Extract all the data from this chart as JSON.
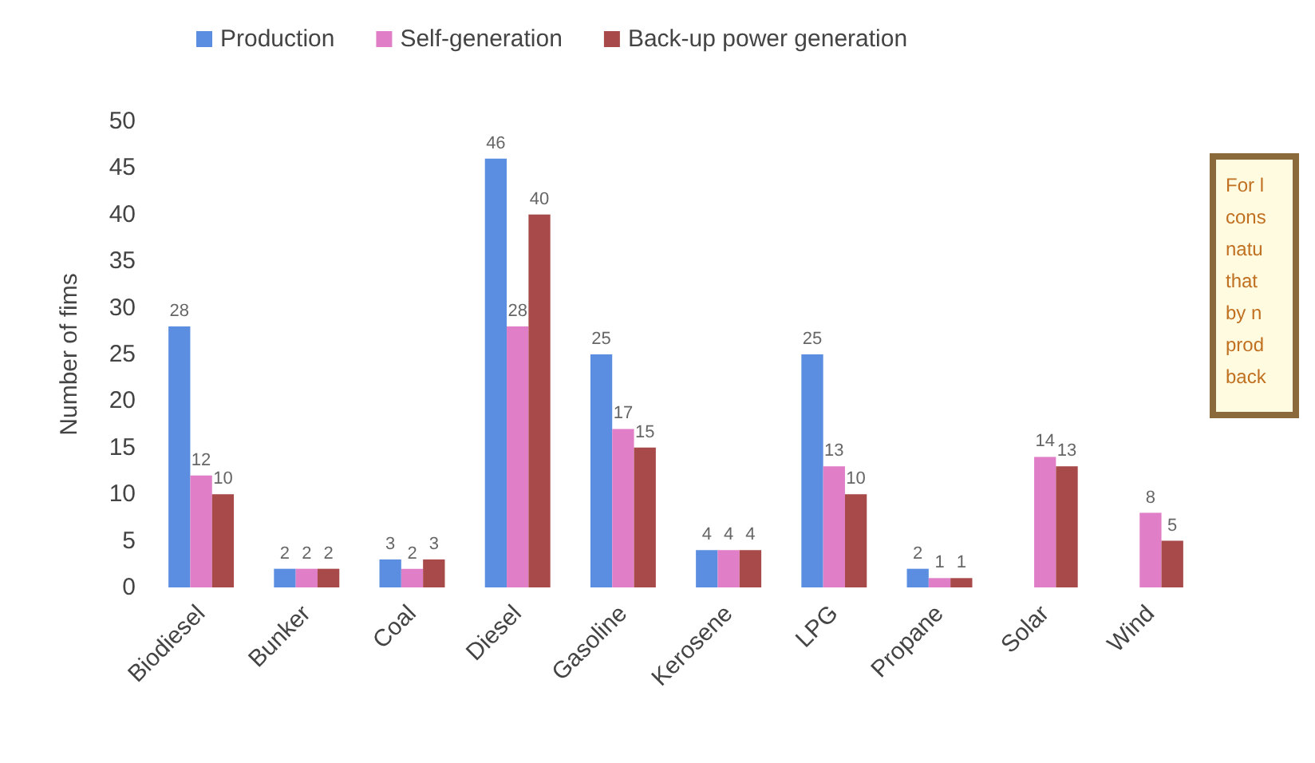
{
  "chart_data": {
    "type": "bar",
    "ylabel": "Number of fims",
    "categories": [
      "Biodiesel",
      "Bunker",
      "Coal",
      "Diesel",
      "Gasoline",
      "Kerosene",
      "LPG",
      "Propane",
      "Solar",
      "Wind"
    ],
    "series": [
      {
        "name": "Production",
        "color": "#5b8ee0",
        "values": [
          28,
          2,
          3,
          46,
          25,
          4,
          25,
          2,
          null,
          null
        ]
      },
      {
        "name": "Self-generation",
        "color": "#e07fc8",
        "values": [
          12,
          2,
          2,
          28,
          17,
          4,
          13,
          1,
          14,
          8
        ]
      },
      {
        "name": "Back-up power generation",
        "color": "#a84a4a",
        "values": [
          10,
          2,
          3,
          40,
          15,
          4,
          10,
          1,
          13,
          5
        ]
      }
    ],
    "ylim": [
      0,
      50
    ],
    "yticks": [
      0,
      5,
      10,
      15,
      20,
      25,
      30,
      35,
      40,
      45,
      50
    ],
    "grid": false,
    "legend": "top",
    "data_labels": true,
    "annotations": [
      "For l\ncons\nnatu\nthat\nby n\nprod\nback"
    ]
  }
}
